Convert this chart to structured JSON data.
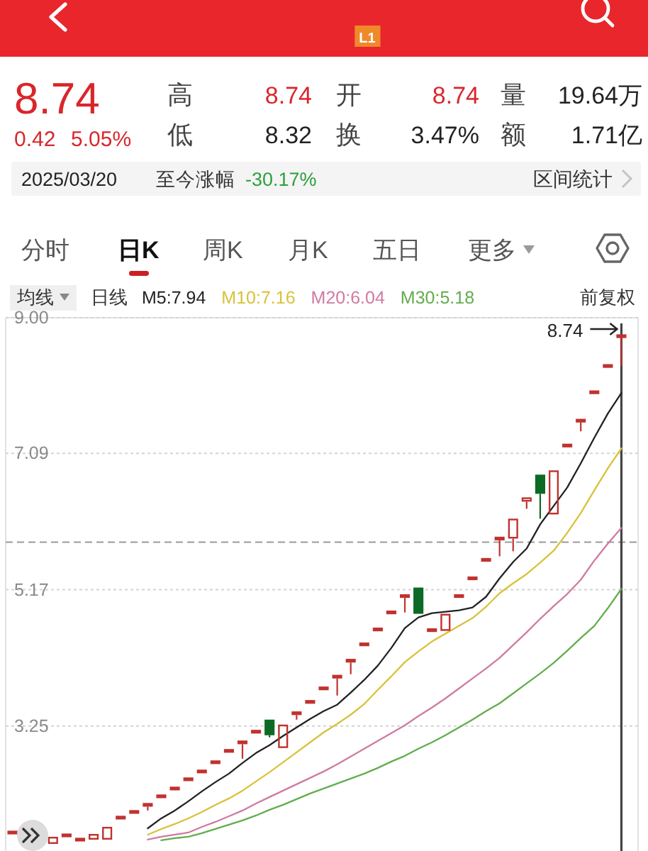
{
  "chart_data": [
    {
      "type": "other",
      "annotations": [
        "L1",
        "8.74",
        "0.42",
        "5.05%",
        "高",
        "8.74",
        "开",
        "8.74",
        "量",
        "19.64万",
        "低",
        "8.32",
        "换",
        "3.47%",
        "额",
        "1.71亿",
        "2025/03/20",
        "至今涨幅",
        "-30.17%",
        "区间统计",
        "分时",
        "日K",
        "周K",
        "月K",
        "五日",
        "更多"
      ]
    },
    {
      "type": "candlestick",
      "categories": [
        null,
        null,
        null,
        null,
        null,
        null,
        null,
        null,
        null,
        null,
        null,
        null,
        null,
        null,
        null,
        null,
        null,
        null,
        null,
        null,
        null,
        null,
        null,
        null,
        null,
        null,
        null,
        null,
        null,
        null,
        null,
        null,
        null,
        null,
        null,
        null,
        null,
        null,
        null,
        null,
        null,
        null,
        null,
        null,
        null,
        null
      ],
      "ohlc": [
        [
          1.75,
          1.75,
          1.75,
          1.75
        ],
        null,
        null,
        [
          1.59,
          1.69,
          1.59,
          1.69
        ],
        [
          1.71,
          1.71,
          1.71,
          1.71
        ],
        [
          1.65,
          1.65,
          1.65,
          1.65
        ],
        [
          1.65,
          1.73,
          1.65,
          1.73
        ],
        [
          1.65,
          1.83,
          1.65,
          1.83
        ],
        [
          1.96,
          1.96,
          1.96,
          1.96
        ],
        [
          2.04,
          2.04,
          2.04,
          2.04
        ],
        [
          2.14,
          2.14,
          2.06,
          2.14
        ],
        [
          2.26,
          2.26,
          2.26,
          2.26
        ],
        [
          2.37,
          2.37,
          2.37,
          2.37
        ],
        [
          2.5,
          2.5,
          2.5,
          2.5
        ],
        [
          2.61,
          2.61,
          2.61,
          2.61
        ],
        [
          2.74,
          2.74,
          2.74,
          2.74
        ],
        [
          2.9,
          2.9,
          2.9,
          2.9
        ],
        [
          3.02,
          3.02,
          2.79,
          3.02
        ],
        [
          3.17,
          3.17,
          3.17,
          3.17
        ],
        [
          3.34,
          3.34,
          3.09,
          3.12
        ],
        [
          2.94,
          3.27,
          2.94,
          3.27
        ],
        [
          3.43,
          3.43,
          3.34,
          3.43
        ],
        [
          3.59,
          3.59,
          3.59,
          3.59
        ],
        [
          3.78,
          3.78,
          3.78,
          3.78
        ],
        [
          3.92,
          3.97,
          3.68,
          3.97
        ],
        [
          4.17,
          4.17,
          3.98,
          4.17
        ],
        [
          4.4,
          4.4,
          4.4,
          4.4
        ],
        [
          4.61,
          4.61,
          4.61,
          4.61
        ],
        [
          4.85,
          4.85,
          4.85,
          4.85
        ],
        [
          5.08,
          5.08,
          4.85,
          5.08
        ],
        [
          5.2,
          5.2,
          4.83,
          4.83
        ],
        [
          4.6,
          4.6,
          4.6,
          4.6
        ],
        [
          4.59,
          4.83,
          4.59,
          4.83
        ],
        [
          5.08,
          5.08,
          5.08,
          5.08
        ],
        [
          5.33,
          5.33,
          5.33,
          5.33
        ],
        [
          5.59,
          5.59,
          5.59,
          5.59
        ],
        [
          5.89,
          5.89,
          5.64,
          5.89
        ],
        [
          5.89,
          6.17,
          5.71,
          6.17
        ],
        [
          6.41,
          6.47,
          6.31,
          6.47
        ],
        [
          6.79,
          6.79,
          6.17,
          6.52
        ],
        [
          6.23,
          6.85,
          6.23,
          6.85
        ],
        [
          7.2,
          7.2,
          7.2,
          7.2
        ],
        [
          7.55,
          7.55,
          7.4,
          7.55
        ],
        [
          7.95,
          7.95,
          7.95,
          7.95
        ],
        [
          8.32,
          8.32,
          8.32,
          8.32
        ],
        [
          8.74,
          8.74,
          8.32,
          8.74
        ]
      ],
      "colors": [
        "#c0322f",
        null,
        null,
        "#c0322f",
        "#c0322f",
        "#c0322f",
        "#c0322f",
        "#c0322f",
        "#c0322f",
        "#c0322f",
        "#c0322f",
        "#c0322f",
        "#c0322f",
        "#c0322f",
        "#c0322f",
        "#c0322f",
        "#c0322f",
        "#c0322f",
        "#c0322f",
        "#0d6a24",
        "#c0322f",
        "#c0322f",
        "#c0322f",
        "#c0322f",
        "#c0322f",
        "#c0322f",
        "#c0322f",
        "#c0322f",
        "#c0322f",
        "#c0322f",
        "#0d6a24",
        "#c0322f",
        "#c0322f",
        "#c0322f",
        "#c0322f",
        "#c0322f",
        "#c0322f",
        "#c0322f",
        "#c0322f",
        "#0d6a24",
        "#c0322f",
        "#c0322f",
        "#c0322f",
        "#c0322f",
        "#c0322f",
        "#c0322f"
      ],
      "series": [
        {
          "name": "M5:7.94",
          "type": "line",
          "color": "#222222",
          "values": [
            null,
            null,
            null,
            null,
            null,
            null,
            null,
            null,
            null,
            null,
            1.81,
            1.95,
            2.06,
            2.19,
            2.33,
            2.46,
            2.58,
            2.73,
            2.87,
            2.98,
            3.11,
            3.23,
            3.35,
            3.46,
            3.55,
            3.72,
            3.9,
            4.1,
            4.35,
            4.63,
            4.78,
            4.84,
            4.86,
            4.88,
            4.92,
            5.07,
            5.33,
            5.56,
            5.75,
            6.09,
            6.35,
            6.61,
            6.95,
            7.31,
            7.65,
            7.94
          ]
        },
        {
          "name": "M10:7.16",
          "type": "line",
          "color": "#d8c23a",
          "values": [
            null,
            null,
            null,
            null,
            null,
            null,
            null,
            null,
            null,
            null,
            1.72,
            1.8,
            1.87,
            1.95,
            2.04,
            2.14,
            2.23,
            2.34,
            2.47,
            2.6,
            2.74,
            2.88,
            3.02,
            3.16,
            3.28,
            3.41,
            3.56,
            3.76,
            3.95,
            4.15,
            4.3,
            4.44,
            4.55,
            4.66,
            4.77,
            4.93,
            5.12,
            5.26,
            5.39,
            5.55,
            5.72,
            5.97,
            6.25,
            6.57,
            6.88,
            7.16
          ]
        },
        {
          "name": "M20:6.04",
          "type": "line",
          "color": "#d07aa2",
          "values": [
            null,
            null,
            null,
            null,
            null,
            null,
            null,
            null,
            null,
            null,
            1.65,
            1.69,
            1.72,
            1.75,
            1.83,
            1.9,
            1.98,
            2.06,
            2.16,
            2.25,
            2.34,
            2.43,
            2.52,
            2.61,
            2.71,
            2.82,
            2.93,
            3.04,
            3.15,
            3.26,
            3.39,
            3.51,
            3.64,
            3.78,
            3.92,
            4.06,
            4.21,
            4.39,
            4.57,
            4.76,
            4.94,
            5.11,
            5.31,
            5.58,
            5.82,
            6.04
          ]
        },
        {
          "name": "M30:5.18",
          "type": "line",
          "color": "#62ad4e",
          "values": [
            null,
            null,
            null,
            null,
            null,
            null,
            null,
            null,
            null,
            null,
            null,
            1.64,
            1.67,
            1.69,
            1.74,
            1.8,
            1.86,
            1.92,
            1.99,
            2.07,
            2.14,
            2.22,
            2.3,
            2.37,
            2.44,
            2.51,
            2.58,
            2.66,
            2.75,
            2.83,
            2.93,
            3.02,
            3.12,
            3.23,
            3.34,
            3.46,
            3.57,
            3.71,
            3.85,
            3.99,
            4.14,
            4.31,
            4.49,
            4.66,
            4.91,
            5.18
          ]
        }
      ],
      "ylim": [
        1.49,
        9.0
      ],
      "yticks": [
        {
          "value": 9.0,
          "label": "9.00"
        },
        7.09,
        5.17,
        3.25
      ],
      "grid": "y",
      "tick_labels": "y",
      "legend": "top left",
      "ref_lines": [
        {
          "axis": "y",
          "value": 5.84,
          "color": "#9a9a9a",
          "line_style": "dashed"
        }
      ],
      "annotations": [
        "均线",
        "日线",
        "前复权",
        "8.74"
      ]
    }
  ]
}
